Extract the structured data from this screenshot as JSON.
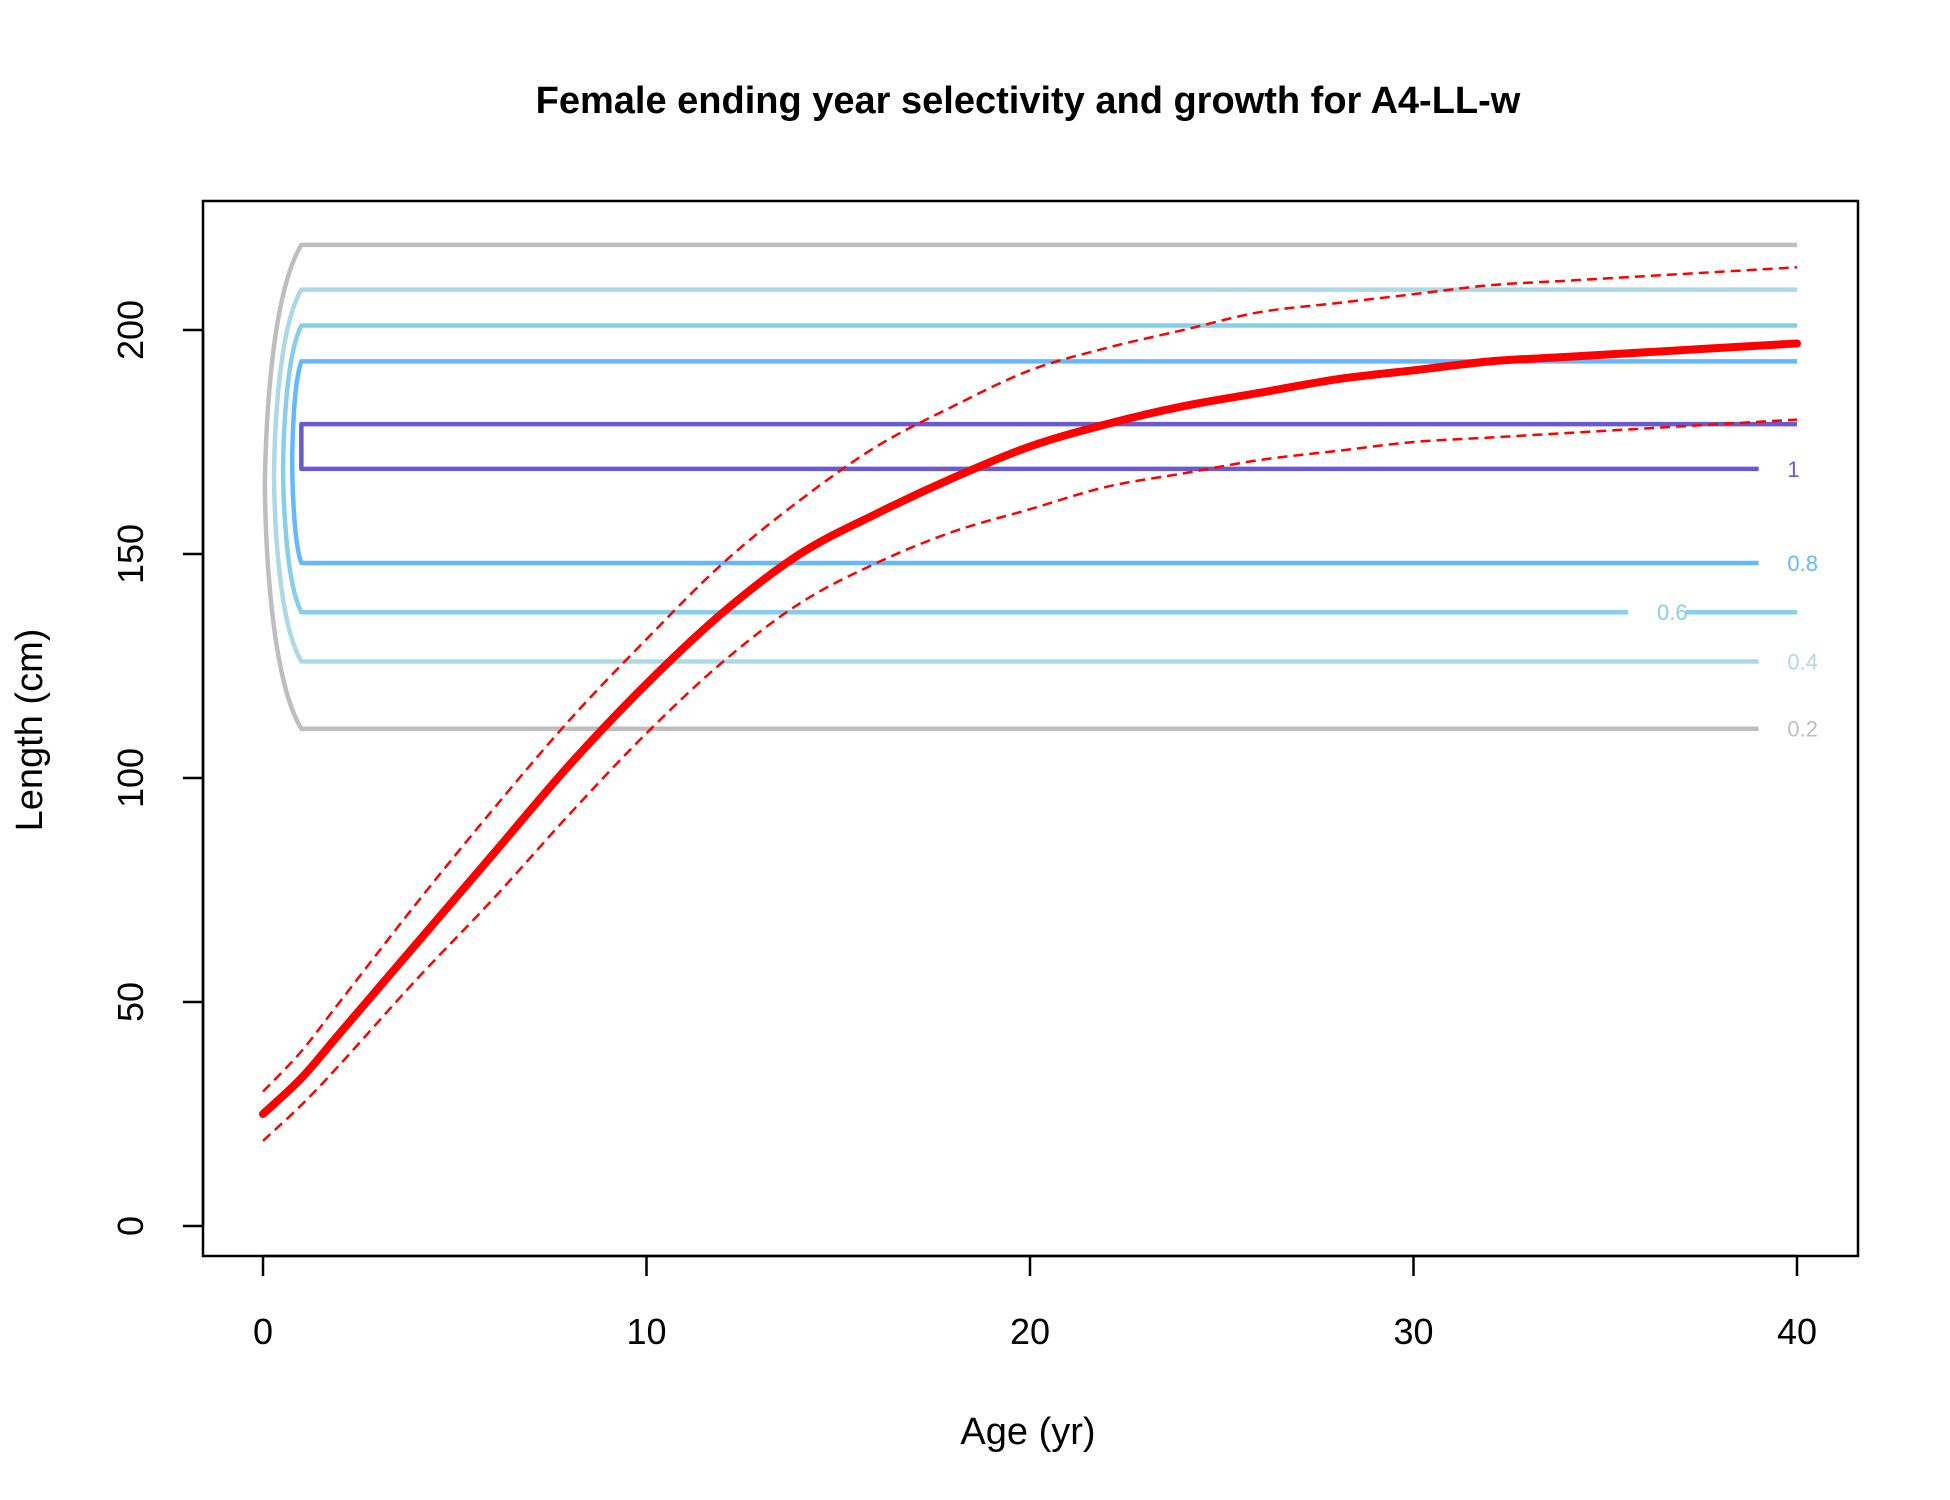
{
  "chart_data": {
    "type": "line",
    "title": "Female ending year selectivity and growth for A4-LL-w",
    "xlabel": "Age (yr)",
    "ylabel": "Length (cm)",
    "xlim": [
      0,
      40
    ],
    "ylim": [
      0,
      220
    ],
    "x_ticks": [
      "0",
      "10",
      "20",
      "30",
      "40"
    ],
    "y_ticks": [
      "0",
      "50",
      "100",
      "150",
      "200"
    ],
    "grid": false,
    "legend": "none",
    "growth": {
      "color": "#ff0000",
      "x": [
        0,
        1,
        2,
        4,
        6,
        8,
        10,
        12,
        14,
        16,
        18,
        20,
        22,
        24,
        26,
        28,
        30,
        32,
        34,
        36,
        38,
        40
      ],
      "mean": [
        25,
        33,
        43,
        63,
        83,
        103,
        121,
        137,
        150,
        159,
        167,
        174,
        179,
        183,
        186,
        189,
        191,
        193,
        194,
        195,
        196,
        197
      ],
      "upper": [
        30,
        39,
        50,
        72,
        93,
        113,
        131,
        148,
        162,
        174,
        183,
        191,
        196,
        200,
        204,
        206,
        208,
        210,
        211,
        212,
        213,
        214
      ],
      "lower": [
        19,
        27,
        36,
        55,
        73,
        92,
        110,
        126,
        139,
        148,
        155,
        160,
        165,
        168,
        171,
        173,
        175,
        176,
        177,
        178,
        179,
        180
      ]
    },
    "selectivity_contours": [
      {
        "level": "0.2",
        "color": "#bebebe",
        "lower": 111,
        "upper": 219,
        "label_x": 39.6
      },
      {
        "level": "0.4",
        "color": "#add8e6",
        "lower": 126,
        "upper": 209,
        "label_x": 39.6
      },
      {
        "level": "0.6",
        "color": "#87ceeb",
        "lower": 137,
        "upper": 201,
        "label_x": 36.2
      },
      {
        "level": "0.8",
        "color": "#63b8ff",
        "lower": 148,
        "upper": 193,
        "label_x": 39.6
      },
      {
        "level": "1",
        "color": "#6a5acd",
        "lower": 169,
        "upper": 179,
        "label_x": 39.6
      }
    ]
  }
}
